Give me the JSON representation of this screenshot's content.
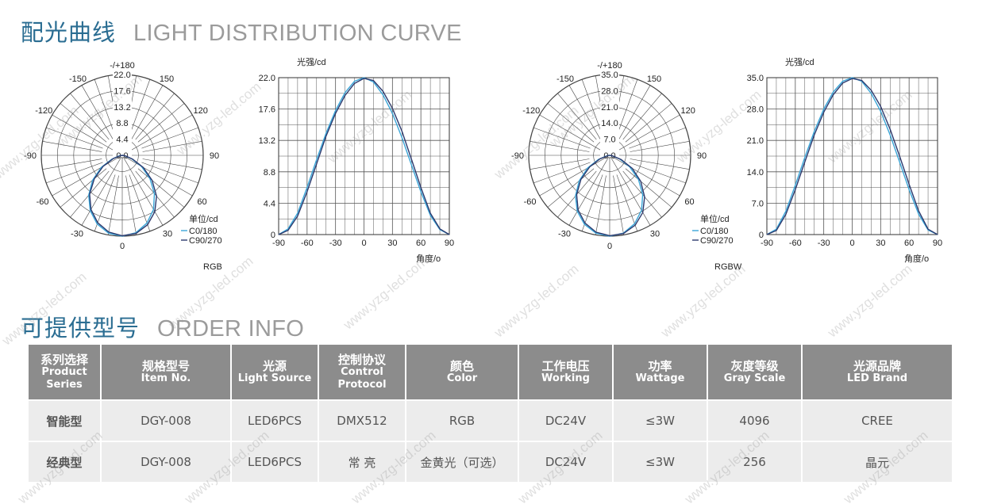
{
  "section_curve": {
    "title_cn": "配光曲线",
    "title_en": "LIGHT DISTRIBUTION CURVE"
  },
  "section_order": {
    "title_cn": "可提供型号",
    "title_en": "ORDER INFO"
  },
  "charts": [
    {
      "id": "rgb",
      "polar": {
        "top_label": "-/+180",
        "ring_values": [
          "22.0",
          "17.6",
          "13.2",
          "8.8",
          "4.4",
          "0.0"
        ],
        "angle_labels": {
          "a150n": "-150",
          "a150": "150",
          "a120n": "-120",
          "a120": "120",
          "a90n": "-90",
          "a90": "90",
          "a60n": "-60",
          "a60": "60",
          "a30n": "-30",
          "a30": "30",
          "a0": "0"
        },
        "unit": "单位/cd",
        "legend": [
          "C0/180",
          "C90/270"
        ],
        "model": "RGB"
      },
      "cartesian": {
        "ylabel": "光强/cd",
        "xlabel": "角度/o",
        "yticks": [
          "22.0",
          "17.6",
          "13.2",
          "8.8",
          "4.4",
          "0"
        ],
        "xticks": [
          "-90",
          "-60",
          "-30",
          "0",
          "30",
          "60",
          "90"
        ]
      }
    },
    {
      "id": "rgbw",
      "polar": {
        "top_label": "-/+180",
        "ring_values": [
          "35.0",
          "28.0",
          "21.0",
          "14.0",
          "7.0",
          "0.0"
        ],
        "angle_labels": {
          "a150n": "-150",
          "a150": "150",
          "a120n": "-120",
          "a120": "120",
          "a90n": "-90",
          "a90": "90",
          "a60n": "-60",
          "a60": "60",
          "a30n": "-30",
          "a30": "30",
          "a0": "0"
        },
        "unit": "单位/cd",
        "legend": [
          "C0/180",
          "C90/270"
        ],
        "model": "RGBW"
      },
      "cartesian": {
        "ylabel": "光强/cd",
        "xlabel": "角度/o",
        "yticks": [
          "35.0",
          "28.0",
          "21.0",
          "14.0",
          "7.0",
          "0"
        ],
        "xticks": [
          "-90",
          "-60",
          "-30",
          "0",
          "30",
          "60",
          "90"
        ]
      }
    }
  ],
  "chart_data": [
    {
      "type": "line",
      "ylabel": "光强/cd",
      "xlabel": "角度/o",
      "xlim": [
        -90,
        90
      ],
      "ylim": [
        0,
        22.0
      ],
      "x": [
        -90,
        -80,
        -70,
        -60,
        -50,
        -40,
        -30,
        -20,
        -10,
        0,
        10,
        20,
        30,
        40,
        50,
        60,
        70,
        80,
        90
      ],
      "series": [
        {
          "name": "C0/180",
          "values": [
            0,
            0.8,
            3.0,
            6.6,
            10.5,
            14.2,
            17.4,
            19.9,
            21.5,
            22.0,
            21.4,
            19.6,
            17.0,
            13.6,
            9.8,
            6.0,
            2.7,
            0.7,
            0
          ]
        },
        {
          "name": "C90/270",
          "values": [
            0,
            0.6,
            2.6,
            6.0,
            9.9,
            13.8,
            17.0,
            19.5,
            21.2,
            21.9,
            21.6,
            20.1,
            17.7,
            14.5,
            10.6,
            6.6,
            3.0,
            0.8,
            0
          ]
        }
      ],
      "colors": {
        "C0/180": "#3aa6d8",
        "C90/270": "#2d3a6e"
      }
    },
    {
      "type": "line",
      "ylabel": "光强/cd",
      "xlabel": "角度/o",
      "xlim": [
        -90,
        90
      ],
      "ylim": [
        0,
        35.0
      ],
      "x": [
        -90,
        -80,
        -70,
        -60,
        -50,
        -40,
        -30,
        -20,
        -10,
        0,
        10,
        20,
        30,
        40,
        50,
        60,
        70,
        80,
        90
      ],
      "series": [
        {
          "name": "C0/180",
          "values": [
            0,
            1.2,
            5.2,
            11.0,
            17.2,
            23.0,
            28.0,
            31.8,
            34.2,
            35.0,
            34.2,
            31.5,
            27.5,
            22.2,
            16.2,
            10.0,
            4.6,
            1.0,
            0
          ]
        },
        {
          "name": "C90/270",
          "values": [
            0,
            0.9,
            4.5,
            10.0,
            16.2,
            22.2,
            27.3,
            31.2,
            33.8,
            34.8,
            34.4,
            32.2,
            28.6,
            23.5,
            17.5,
            11.2,
            5.3,
            1.2,
            0
          ]
        }
      ],
      "colors": {
        "C0/180": "#3aa6d8",
        "C90/270": "#2d3a6e"
      }
    }
  ],
  "order": {
    "headers": [
      {
        "l1": "系列选择",
        "l2": "Product",
        "l3": "Series"
      },
      {
        "l1": "规格型号",
        "l2": "Item No."
      },
      {
        "l1": "光源",
        "l2": "Light Source"
      },
      {
        "l1": "控制协议",
        "l2": "Control",
        "l3": "Protocol"
      },
      {
        "l1": "颜色",
        "l2": "Color"
      },
      {
        "l1": "工作电压",
        "l2": "Working"
      },
      {
        "l1": "功率",
        "l2": "Wattage"
      },
      {
        "l1": "灰度等级",
        "l2": "Gray Scale"
      },
      {
        "l1": "光源品牌",
        "l2": "LED Brand"
      }
    ],
    "rows": [
      [
        "智能型",
        "DGY-008",
        "LED6PCS",
        "DMX512",
        "RGB",
        "DC24V",
        "≤3W",
        "4096",
        "CREE"
      ],
      [
        "经典型",
        "DGY-008",
        "LED6PCS",
        "常 亮",
        "金黄光（可选）",
        "DC24V",
        "≤3W",
        "256",
        "晶元"
      ]
    ]
  },
  "watermark": "www.yzg-led.com",
  "colors": {
    "title_blue": "#2a6d92",
    "header_gray": "#8c8c8c",
    "cell_gray": "#ececec",
    "c0": "#3aa6d8",
    "c90": "#2d3a6e"
  }
}
